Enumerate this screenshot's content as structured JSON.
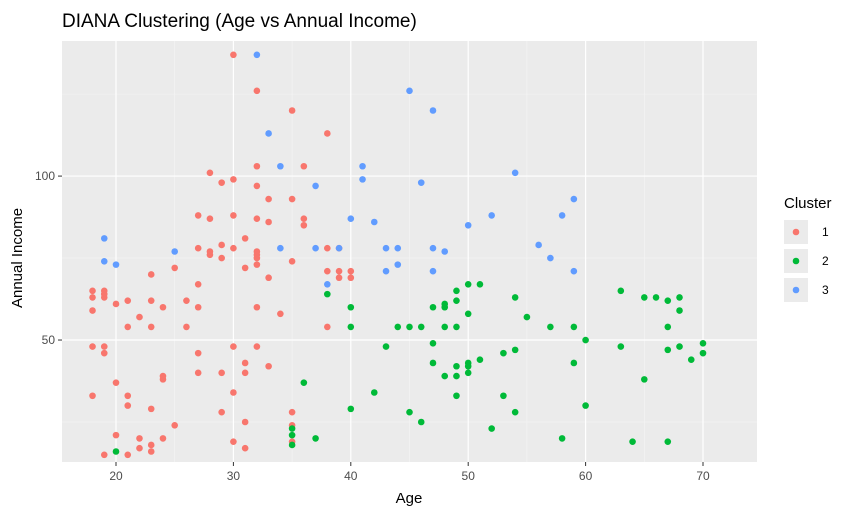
{
  "chart_data": {
    "type": "scatter",
    "title": "DIANA Clustering (Age vs Annual Income)",
    "xlabel": "Age",
    "ylabel": "Annual Income",
    "xlim": [
      15.4,
      74.6
    ],
    "ylim": [
      12.8,
      141.2
    ],
    "xticks": [
      20,
      30,
      40,
      50,
      60,
      70
    ],
    "yticks": [
      50,
      100
    ],
    "xtick_labels": [
      "20",
      "30",
      "40",
      "50",
      "60",
      "70"
    ],
    "ytick_labels": [
      "50",
      "100"
    ],
    "grid": true,
    "legend": {
      "title": "Cluster",
      "placement": "right"
    },
    "series": [
      {
        "name": "1",
        "color": "#F8766D",
        "points": [
          [
            18,
            33
          ],
          [
            18,
            48
          ],
          [
            18,
            59
          ],
          [
            18,
            63
          ],
          [
            18,
            65
          ],
          [
            19,
            15
          ],
          [
            19,
            46
          ],
          [
            19,
            48
          ],
          [
            19,
            63
          ],
          [
            19,
            64
          ],
          [
            19,
            65
          ],
          [
            20,
            21
          ],
          [
            20,
            37
          ],
          [
            20,
            61
          ],
          [
            21,
            15
          ],
          [
            21,
            30
          ],
          [
            21,
            33
          ],
          [
            21,
            54
          ],
          [
            21,
            62
          ],
          [
            22,
            17
          ],
          [
            22,
            20
          ],
          [
            22,
            57
          ],
          [
            23,
            16
          ],
          [
            23,
            18
          ],
          [
            23,
            29
          ],
          [
            23,
            54
          ],
          [
            23,
            62
          ],
          [
            23,
            70
          ],
          [
            24,
            20
          ],
          [
            24,
            38
          ],
          [
            24,
            39
          ],
          [
            24,
            60
          ],
          [
            25,
            24
          ],
          [
            25,
            72
          ],
          [
            26,
            54
          ],
          [
            26,
            62
          ],
          [
            27,
            40
          ],
          [
            27,
            46
          ],
          [
            27,
            60
          ],
          [
            27,
            67
          ],
          [
            27,
            78
          ],
          [
            27,
            88
          ],
          [
            28,
            76
          ],
          [
            28,
            77
          ],
          [
            28,
            87
          ],
          [
            28,
            101
          ],
          [
            29,
            28
          ],
          [
            29,
            40
          ],
          [
            29,
            75
          ],
          [
            29,
            79
          ],
          [
            29,
            98
          ],
          [
            30,
            19
          ],
          [
            30,
            34
          ],
          [
            30,
            48
          ],
          [
            30,
            78
          ],
          [
            30,
            88
          ],
          [
            30,
            99
          ],
          [
            30,
            137
          ],
          [
            31,
            17
          ],
          [
            31,
            25
          ],
          [
            31,
            40
          ],
          [
            31,
            43
          ],
          [
            31,
            72
          ],
          [
            31,
            81
          ],
          [
            32,
            48
          ],
          [
            32,
            60
          ],
          [
            32,
            73
          ],
          [
            32,
            75
          ],
          [
            32,
            76
          ],
          [
            32,
            77
          ],
          [
            32,
            87
          ],
          [
            32,
            97
          ],
          [
            32,
            103
          ],
          [
            32,
            126
          ],
          [
            33,
            42
          ],
          [
            33,
            69
          ],
          [
            33,
            86
          ],
          [
            33,
            93
          ],
          [
            34,
            58
          ],
          [
            35,
            19
          ],
          [
            35,
            24
          ],
          [
            35,
            28
          ],
          [
            35,
            74
          ],
          [
            35,
            93
          ],
          [
            35,
            120
          ],
          [
            36,
            85
          ],
          [
            36,
            87
          ],
          [
            36,
            103
          ],
          [
            38,
            54
          ],
          [
            38,
            71
          ],
          [
            38,
            78
          ],
          [
            38,
            113
          ],
          [
            39,
            69
          ],
          [
            39,
            71
          ],
          [
            39,
            78
          ],
          [
            40,
            69
          ],
          [
            40,
            71
          ]
        ]
      },
      {
        "name": "2",
        "color": "#00BA38",
        "points": [
          [
            20,
            16
          ],
          [
            35,
            18
          ],
          [
            35,
            21
          ],
          [
            35,
            23
          ],
          [
            36,
            37
          ],
          [
            37,
            20
          ],
          [
            38,
            64
          ],
          [
            40,
            29
          ],
          [
            40,
            54
          ],
          [
            40,
            60
          ],
          [
            42,
            34
          ],
          [
            43,
            48
          ],
          [
            44,
            54
          ],
          [
            45,
            28
          ],
          [
            45,
            54
          ],
          [
            46,
            25
          ],
          [
            46,
            54
          ],
          [
            47,
            43
          ],
          [
            47,
            49
          ],
          [
            47,
            60
          ],
          [
            48,
            39
          ],
          [
            48,
            54
          ],
          [
            48,
            60
          ],
          [
            48,
            61
          ],
          [
            49,
            33
          ],
          [
            49,
            39
          ],
          [
            49,
            42
          ],
          [
            49,
            54
          ],
          [
            49,
            62
          ],
          [
            49,
            65
          ],
          [
            50,
            40
          ],
          [
            50,
            42
          ],
          [
            50,
            43
          ],
          [
            50,
            58
          ],
          [
            50,
            67
          ],
          [
            51,
            44
          ],
          [
            51,
            67
          ],
          [
            52,
            23
          ],
          [
            53,
            33
          ],
          [
            53,
            46
          ],
          [
            54,
            28
          ],
          [
            54,
            47
          ],
          [
            54,
            63
          ],
          [
            55,
            57
          ],
          [
            57,
            54
          ],
          [
            58,
            20
          ],
          [
            59,
            43
          ],
          [
            59,
            54
          ],
          [
            60,
            30
          ],
          [
            60,
            50
          ],
          [
            63,
            48
          ],
          [
            63,
            65
          ],
          [
            64,
            19
          ],
          [
            65,
            38
          ],
          [
            65,
            63
          ],
          [
            66,
            63
          ],
          [
            67,
            19
          ],
          [
            67,
            47
          ],
          [
            67,
            54
          ],
          [
            67,
            62
          ],
          [
            68,
            48
          ],
          [
            68,
            59
          ],
          [
            68,
            63
          ],
          [
            69,
            44
          ],
          [
            70,
            46
          ],
          [
            70,
            49
          ]
        ]
      },
      {
        "name": "3",
        "color": "#619CFF",
        "points": [
          [
            19,
            74
          ],
          [
            19,
            81
          ],
          [
            20,
            73
          ],
          [
            25,
            77
          ],
          [
            32,
            137
          ],
          [
            33,
            113
          ],
          [
            34,
            78
          ],
          [
            34,
            103
          ],
          [
            37,
            78
          ],
          [
            37,
            97
          ],
          [
            38,
            67
          ],
          [
            39,
            78
          ],
          [
            40,
            87
          ],
          [
            41,
            99
          ],
          [
            41,
            103
          ],
          [
            42,
            86
          ],
          [
            43,
            71
          ],
          [
            43,
            78
          ],
          [
            44,
            73
          ],
          [
            44,
            78
          ],
          [
            45,
            126
          ],
          [
            46,
            98
          ],
          [
            47,
            71
          ],
          [
            47,
            78
          ],
          [
            47,
            120
          ],
          [
            48,
            77
          ],
          [
            50,
            85
          ],
          [
            52,
            88
          ],
          [
            54,
            101
          ],
          [
            56,
            79
          ],
          [
            57,
            75
          ],
          [
            58,
            88
          ],
          [
            59,
            71
          ],
          [
            59,
            93
          ]
        ]
      }
    ]
  }
}
